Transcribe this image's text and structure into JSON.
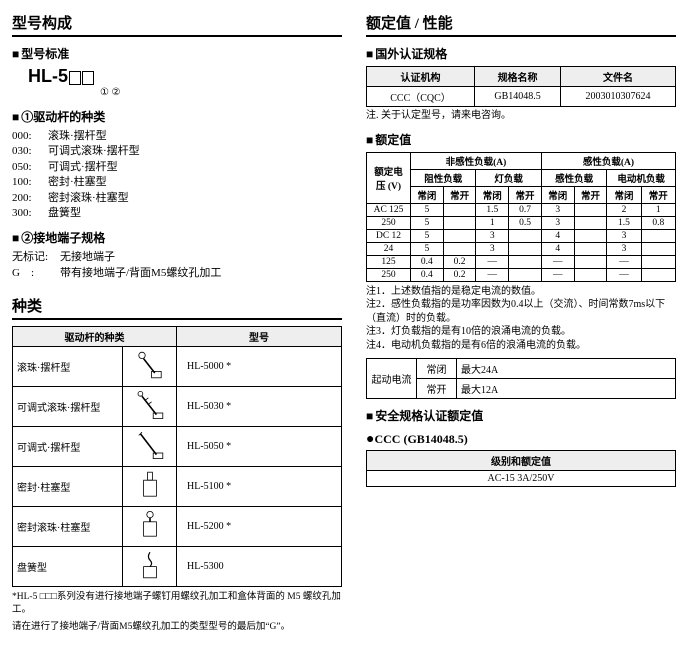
{
  "left": {
    "h_model_comp": "型号构成",
    "sub_model_std": "型号标准",
    "hl_prefix": "HL-5",
    "circled": "① ②",
    "sub_lever": "①驱动杆的种类",
    "lever_opts": [
      {
        "code": "000:",
        "label": "滚珠·摆杆型"
      },
      {
        "code": "030:",
        "label": "可调式滚珠·摆杆型"
      },
      {
        "code": "050:",
        "label": "可调式·摆杆型"
      },
      {
        "code": "100:",
        "label": "密封·柱塞型"
      },
      {
        "code": "200:",
        "label": "密封滚珠·柱塞型"
      },
      {
        "code": "300:",
        "label": "盘簧型"
      }
    ],
    "sub_term": "②接地端子规格",
    "term_opts": [
      {
        "code": "无标记:",
        "label": "无接地端子"
      },
      {
        "code": "G　:",
        "label": "带有接地端子/背面M5螺纹孔加工"
      }
    ],
    "h_types": "种类",
    "types_hdr_kind": "驱动杆的种类",
    "types_hdr_model": "型号",
    "types": [
      {
        "kind": "滚珠·摆杆型",
        "model": "HL-5000  *"
      },
      {
        "kind": "可调式滚珠·摆杆型",
        "model": "HL-5030  *"
      },
      {
        "kind": "可调式·摆杆型",
        "model": "HL-5050  *"
      },
      {
        "kind": "密封·柱塞型",
        "model": "HL-5100  *"
      },
      {
        "kind": "密封滚珠·柱塞型",
        "model": "HL-5200  *"
      },
      {
        "kind": "盘簧型",
        "model": "HL-5300"
      }
    ],
    "foot1": "*HL-5 □□□系列没有进行接地端子螺钉用螺纹孔加工和盒体背面的 M5 螺纹孔加工。",
    "foot2": "请在进行了接地端子/背面M5螺纹孔加工的类型型号的最后加“G”。"
  },
  "right": {
    "h_ratings": "额定值 / 性能",
    "sub_cert": "国外认证规格",
    "cert_hdr": [
      "认证机构",
      "规格名称",
      "文件名"
    ],
    "cert_row": [
      "CCC（CQC）",
      "GB14048.5",
      "2003010307624"
    ],
    "cert_note": "注. 关于认定型号，请来电咨询。",
    "sub_rated": "额定值",
    "rated": {
      "volt_hdr": "额定电压 (V)",
      "groupA": "非感性负载(A)",
      "groupB": "感性负载(A)",
      "subA": [
        "阻性负载",
        "灯负载"
      ],
      "subB": [
        "感性负载",
        "电动机负载"
      ],
      "nc": "常闭",
      "no": "常开",
      "rows": [
        {
          "v": "AC 125",
          "c": [
            "5",
            "",
            "1.5",
            "0.7",
            "3",
            "",
            "2",
            "1"
          ]
        },
        {
          "v": "250",
          "c": [
            "5",
            "",
            "1",
            "0.5",
            "3",
            "",
            "1.5",
            "0.8"
          ]
        },
        {
          "v": "DC  12",
          "c": [
            "5",
            "",
            "3",
            "",
            "4",
            "",
            "3",
            ""
          ]
        },
        {
          "v": "24",
          "c": [
            "5",
            "",
            "3",
            "",
            "4",
            "",
            "3",
            ""
          ]
        },
        {
          "v": "125",
          "c": [
            "0.4",
            "0.2",
            "—",
            "",
            "—",
            "",
            "—",
            ""
          ]
        },
        {
          "v": "250",
          "c": [
            "0.4",
            "0.2",
            "—",
            "",
            "—",
            "",
            "—",
            ""
          ]
        }
      ]
    },
    "rated_notes": [
      "注1．上述数值指的是稳定电流的数值。",
      "注2．感性负载指的是功率因数为0.4以上（交流）、时间常数7ms以下（直流）时的负载。",
      "注3．灯负载指的是有10倍的浪涌电流的负载。",
      "注4．电动机负载指的是有6倍的浪涌电流的负载。"
    ],
    "inrush_lbl": "起动电流",
    "inrush": [
      {
        "k": "常闭",
        "v": "最大24A"
      },
      {
        "k": "常开",
        "v": "最大12A"
      }
    ],
    "sub_safety": "安全规格认证额定值",
    "ccc_label": "CCC (GB14048.5)",
    "safety_hdr": "级别和额定值",
    "safety_val": "AC-15  3A/250V"
  }
}
